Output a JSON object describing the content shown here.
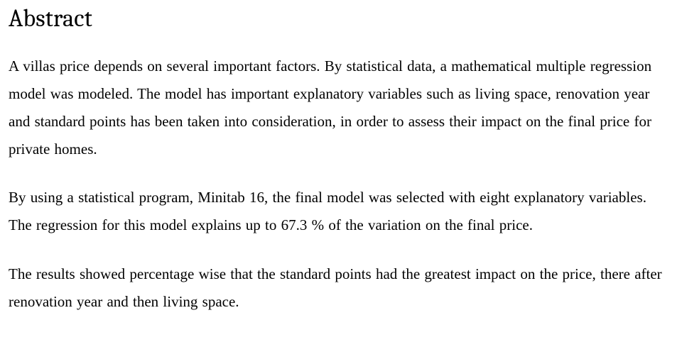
{
  "title_fontsize": 34,
  "body_fontsize": 21,
  "line_height": 1.85,
  "font_family_heading": "Cambria",
  "font_family_body": "Times New Roman",
  "text_color": "#000000",
  "background_color": "#ffffff",
  "heading": "Abstract",
  "paragraphs": [
    "A villas price depends on several important factors. By statistical data, a mathematical multiple regression model was modeled. The model has important explanatory variables such as living space, renovation year and standard points has been taken into consideration, in order to assess their impact on the final price for private homes.",
    "By using a statistical program, Minitab 16, the final model was selected with eight explanatory variables. The regression for this model explains up to 67.3 % of the variation on the final price.",
    "The results showed percentage wise that the standard points had the greatest impact on the price, there after renovation year and then living space."
  ]
}
